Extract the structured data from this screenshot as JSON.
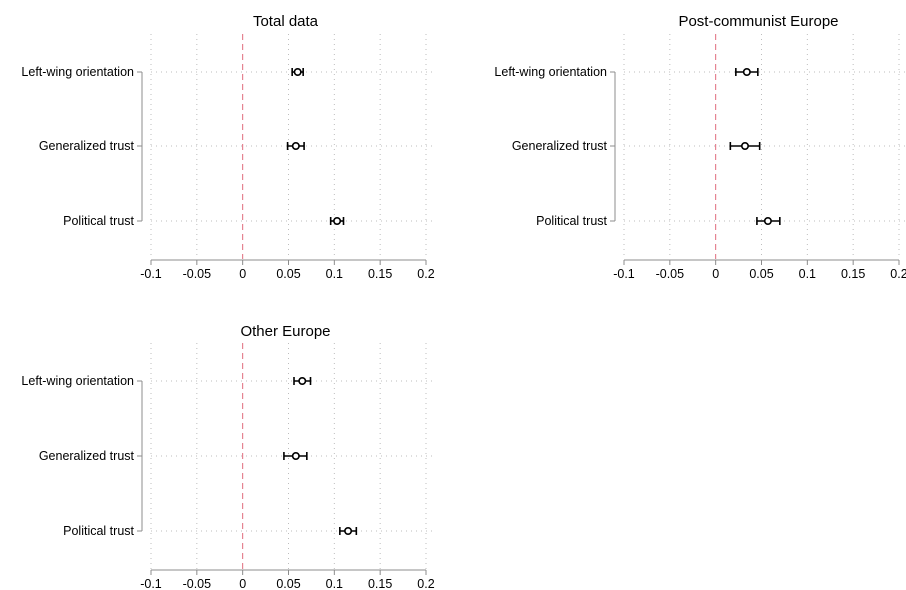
{
  "chart_data": [
    {
      "type": "scatter",
      "subtype": "coefficient-plot",
      "title": "Total data",
      "categories": [
        "Left-wing orientation",
        "Generalized trust",
        "Political trust"
      ],
      "estimates": [
        0.06,
        0.058,
        0.103
      ],
      "ci_low": [
        0.054,
        0.049,
        0.096
      ],
      "ci_high": [
        0.066,
        0.067,
        0.11
      ],
      "xlim": [
        -0.1,
        0.2
      ],
      "x_ticks": [
        -0.1,
        -0.05,
        0,
        0.05,
        0.1,
        0.15,
        0.2
      ],
      "x_tick_labels": [
        "-0.1",
        "-0.05",
        "0",
        "0.05",
        "0.1",
        "0.15",
        "0.2"
      ],
      "reference_line": 0,
      "grid": true
    },
    {
      "type": "scatter",
      "subtype": "coefficient-plot",
      "title": "Post-communist Europe",
      "categories": [
        "Left-wing orientation",
        "Generalized trust",
        "Political trust"
      ],
      "estimates": [
        0.034,
        0.032,
        0.057
      ],
      "ci_low": [
        0.022,
        0.016,
        0.045
      ],
      "ci_high": [
        0.046,
        0.048,
        0.07
      ],
      "xlim": [
        -0.1,
        0.2
      ],
      "x_ticks": [
        -0.1,
        -0.05,
        0,
        0.05,
        0.1,
        0.15,
        0.2
      ],
      "x_tick_labels": [
        "-0.1",
        "-0.05",
        "0",
        "0.05",
        "0.1",
        "0.15",
        "0.2"
      ],
      "reference_line": 0,
      "grid": true
    },
    {
      "type": "scatter",
      "subtype": "coefficient-plot",
      "title": "Other Europe",
      "categories": [
        "Left-wing orientation",
        "Generalized trust",
        "Political trust"
      ],
      "estimates": [
        0.065,
        0.058,
        0.115
      ],
      "ci_low": [
        0.056,
        0.045,
        0.106
      ],
      "ci_high": [
        0.074,
        0.07,
        0.124
      ],
      "xlim": [
        -0.1,
        0.2
      ],
      "x_ticks": [
        -0.1,
        -0.05,
        0,
        0.05,
        0.1,
        0.15,
        0.2
      ],
      "x_tick_labels": [
        "-0.1",
        "-0.05",
        "0",
        "0.05",
        "0.1",
        "0.15",
        "0.2"
      ],
      "reference_line": 0,
      "grid": true
    }
  ],
  "colors": {
    "marker": "#000000",
    "reference_line": "#e06c7c",
    "grid": "#bdbdbd",
    "axis": "#8c8c8c"
  }
}
